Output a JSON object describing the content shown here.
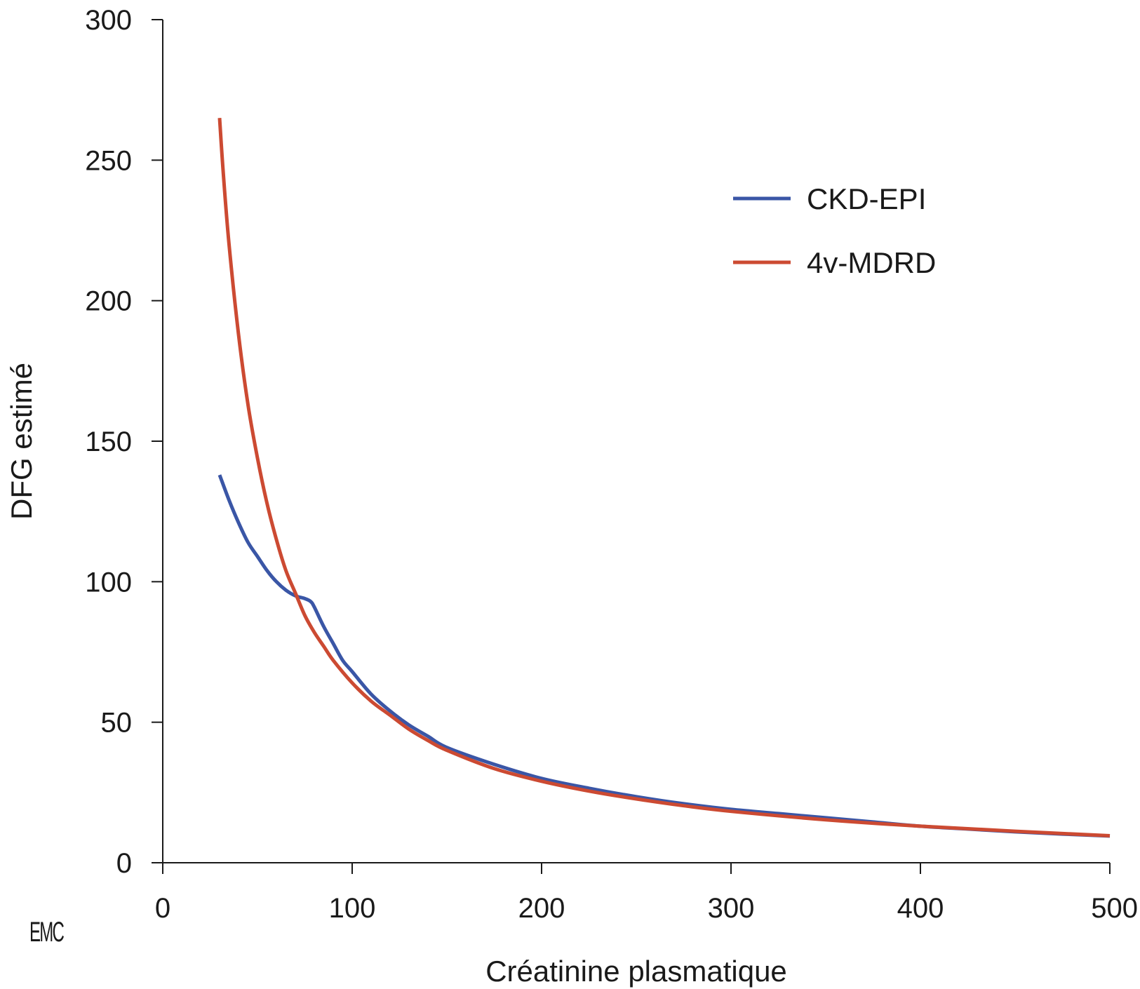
{
  "chart_data": {
    "type": "line",
    "title": "",
    "xlabel": "Créatinine plasmatique",
    "ylabel": "DFG estimé",
    "xlim": [
      0,
      500
    ],
    "ylim": [
      0,
      300
    ],
    "xticks": [
      0,
      100,
      200,
      300,
      400,
      500
    ],
    "yticks": [
      0,
      50,
      100,
      150,
      200,
      250,
      300
    ],
    "grid": false,
    "legend_position": "top-right",
    "series": [
      {
        "name": "CKD-EPI",
        "color": "#3a56a6",
        "x": [
          30,
          35,
          40,
          45,
          50,
          55,
          60,
          65,
          70,
          75,
          78,
          80,
          85,
          90,
          95,
          100,
          110,
          120,
          130,
          140,
          150,
          175,
          200,
          225,
          250,
          275,
          300,
          325,
          350,
          375,
          400,
          425,
          450,
          475,
          500
        ],
        "y": [
          138,
          129,
          121,
          114,
          109,
          104,
          100,
          97,
          95,
          94,
          93,
          91,
          84,
          78,
          72,
          68,
          60,
          54,
          49,
          45,
          41,
          35,
          30,
          26.5,
          23.5,
          21,
          19,
          17.5,
          16,
          14.5,
          13,
          12,
          11,
          10.2,
          9.5
        ]
      },
      {
        "name": "4v-MDRD",
        "color": "#cc4a32",
        "x": [
          30,
          32,
          35,
          40,
          45,
          50,
          55,
          60,
          65,
          70,
          75,
          80,
          85,
          90,
          100,
          110,
          120,
          130,
          140,
          150,
          175,
          200,
          225,
          250,
          275,
          300,
          350,
          400,
          450,
          500
        ],
        "y": [
          265,
          245,
          220,
          188,
          163,
          144,
          128,
          115,
          104,
          96,
          88,
          82,
          77,
          72,
          64,
          57.5,
          52.5,
          47.5,
          43.5,
          40,
          33.5,
          29,
          25.5,
          22.7,
          20.3,
          18.3,
          15.3,
          13,
          11.2,
          9.6
        ]
      }
    ]
  },
  "logo": {
    "text": "EMC"
  }
}
